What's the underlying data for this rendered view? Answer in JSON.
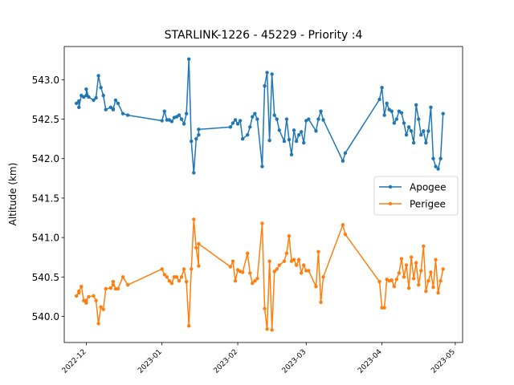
{
  "chart_data": {
    "type": "line",
    "title": "STARLINK-1226 - 45229 - Priority :4",
    "xlabel": "",
    "ylabel": "Altitude (km)",
    "ylim": [
      539.67,
      543.42
    ],
    "xlim": [
      "2022-11-22",
      "2023-05-04"
    ],
    "grid": false,
    "legend_position": "center-right",
    "x_ticks": [
      "2022-12",
      "2023-01",
      "2023-02",
      "2023-03",
      "2023-04",
      "2023-05"
    ],
    "y_ticks": [
      "540.0",
      "540.5",
      "541.0",
      "541.5",
      "542.0",
      "542.5",
      "543.0"
    ],
    "x": [
      "2022-11-27",
      "2022-11-28",
      "2022-11-28",
      "2022-11-29",
      "2022-11-30",
      "2022-12-01",
      "2022-12-01",
      "2022-12-02",
      "2022-12-04",
      "2022-12-05",
      "2022-12-06",
      "2022-12-07",
      "2022-12-08",
      "2022-12-09",
      "2022-12-11",
      "2022-12-12",
      "2022-12-12",
      "2022-12-13",
      "2022-12-14",
      "2022-12-16",
      "2022-12-18",
      "2023-01-01",
      "2023-01-02",
      "2023-01-03",
      "2023-01-04",
      "2023-01-05",
      "2023-01-06",
      "2023-01-07",
      "2023-01-08",
      "2023-01-09",
      "2023-01-10",
      "2023-01-11",
      "2023-01-12",
      "2023-01-13",
      "2023-01-14",
      "2023-01-15",
      "2023-01-16",
      "2023-01-16",
      "2023-01-29",
      "2023-01-30",
      "2023-01-31",
      "2023-02-01",
      "2023-02-02",
      "2023-02-03",
      "2023-02-05",
      "2023-02-06",
      "2023-02-07",
      "2023-02-08",
      "2023-02-09",
      "2023-02-11",
      "2023-02-12",
      "2023-02-13",
      "2023-02-14",
      "2023-02-15",
      "2023-02-16",
      "2023-02-17",
      "2023-02-18",
      "2023-02-20",
      "2023-02-21",
      "2023-02-22",
      "2023-02-23",
      "2023-02-24",
      "2023-02-25",
      "2023-02-26",
      "2023-02-27",
      "2023-02-28",
      "2023-03-01",
      "2023-03-02",
      "2023-03-05",
      "2023-03-06",
      "2023-03-07",
      "2023-03-08",
      "2023-03-16",
      "2023-03-17",
      "2023-03-31",
      "2023-04-01",
      "2023-04-02",
      "2023-04-03",
      "2023-04-04",
      "2023-04-05",
      "2023-04-06",
      "2023-04-07",
      "2023-04-08",
      "2023-04-09",
      "2023-04-10",
      "2023-04-11",
      "2023-04-12",
      "2023-04-13",
      "2023-04-14",
      "2023-04-15",
      "2023-04-16",
      "2023-04-17",
      "2023-04-18",
      "2023-04-19",
      "2023-04-20",
      "2023-04-21",
      "2023-04-22",
      "2023-04-23",
      "2023-04-24",
      "2023-04-25",
      "2023-04-26"
    ],
    "series": [
      {
        "name": "Apogee",
        "color": "#1f77b4",
        "values": [
          542.7,
          542.73,
          542.65,
          542.8,
          542.78,
          542.8,
          542.88,
          542.78,
          542.74,
          542.77,
          543.05,
          542.9,
          542.8,
          542.62,
          542.65,
          542.63,
          542.62,
          542.74,
          542.7,
          542.57,
          542.55,
          542.48,
          542.6,
          542.49,
          542.49,
          542.47,
          542.52,
          542.53,
          542.55,
          542.5,
          542.44,
          542.57,
          543.26,
          542.22,
          541.82,
          542.25,
          542.3,
          542.37,
          542.4,
          542.45,
          542.49,
          542.44,
          542.48,
          542.25,
          542.3,
          542.4,
          542.53,
          542.57,
          542.5,
          541.9,
          542.92,
          543.09,
          542.23,
          543.07,
          542.55,
          542.5,
          542.36,
          542.22,
          542.5,
          542.24,
          542.05,
          542.36,
          542.22,
          542.3,
          542.34,
          542.2,
          542.48,
          542.5,
          542.35,
          542.5,
          542.6,
          542.49,
          541.97,
          542.07,
          542.75,
          542.9,
          542.55,
          542.7,
          542.62,
          542.6,
          542.45,
          542.5,
          542.6,
          542.58,
          542.45,
          542.3,
          542.4,
          542.35,
          542.2,
          542.68,
          542.5,
          542.3,
          542.35,
          542.2,
          542.35,
          542.65,
          542.0,
          541.9,
          541.87,
          542.0,
          542.57
        ]
      },
      {
        "name": "Perigee",
        "color": "#ff7f0e",
        "values": [
          540.26,
          540.3,
          540.32,
          540.38,
          540.2,
          540.17,
          540.2,
          540.25,
          540.26,
          540.2,
          539.91,
          540.12,
          540.09,
          540.35,
          540.36,
          540.4,
          540.44,
          540.35,
          540.35,
          540.5,
          540.4,
          540.6,
          540.53,
          540.5,
          540.45,
          540.42,
          540.5,
          540.5,
          540.45,
          540.5,
          540.6,
          540.44,
          539.88,
          540.6,
          541.23,
          540.87,
          540.64,
          540.92,
          540.63,
          540.7,
          540.45,
          540.59,
          540.57,
          540.56,
          540.8,
          540.55,
          540.42,
          540.45,
          540.48,
          541.18,
          540.1,
          539.84,
          540.7,
          539.83,
          540.57,
          540.6,
          540.65,
          540.7,
          540.8,
          541.02,
          540.7,
          540.72,
          540.65,
          540.72,
          540.55,
          540.65,
          540.58,
          540.58,
          540.38,
          540.82,
          540.18,
          540.5,
          541.16,
          541.04,
          540.44,
          540.11,
          540.11,
          540.47,
          540.45,
          540.46,
          540.38,
          540.47,
          540.55,
          540.73,
          540.5,
          540.65,
          540.36,
          540.75,
          540.48,
          540.68,
          540.4,
          540.58,
          540.89,
          540.32,
          540.45,
          540.56,
          540.37,
          540.72,
          540.3,
          540.45,
          540.6
        ]
      }
    ]
  }
}
